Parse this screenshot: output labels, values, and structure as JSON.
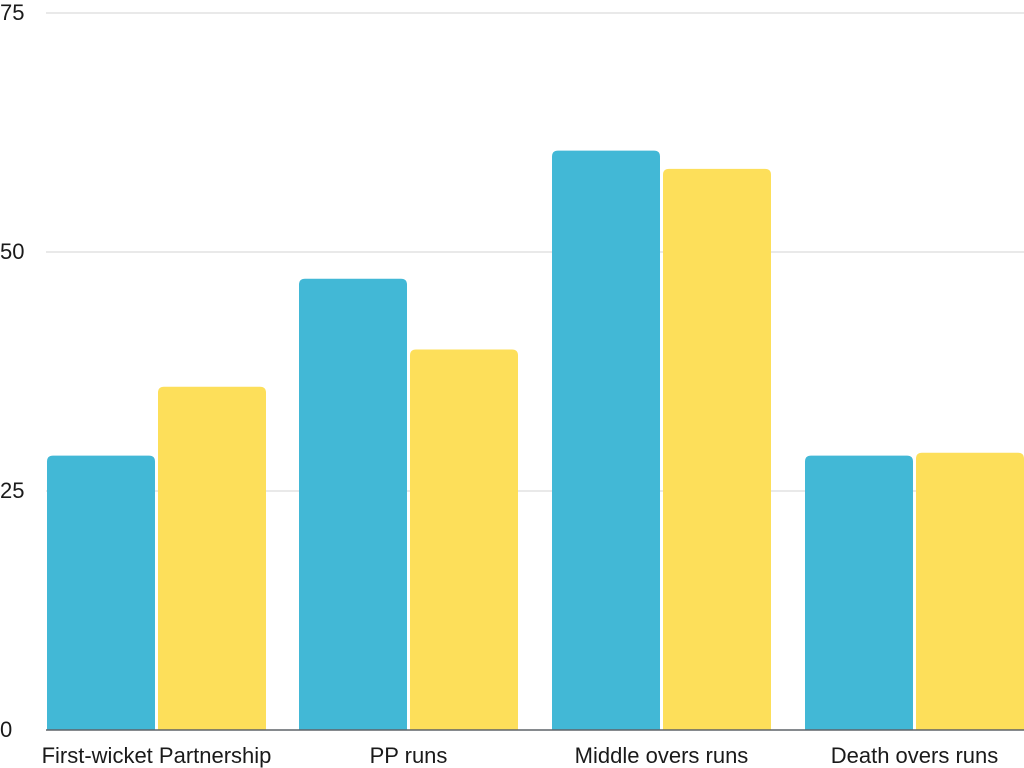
{
  "chart_data": {
    "type": "bar",
    "categories": [
      "First-wicket Partnership",
      "PP runs",
      "Middle overs runs",
      "Death overs runs"
    ],
    "series": [
      {
        "values": [
          28.7,
          47.2,
          60.6,
          28.7
        ],
        "color": "#42b8d6"
      },
      {
        "values": [
          35.9,
          39.8,
          58.7,
          29.0
        ],
        "color": "#fddf5a"
      }
    ],
    "title": "",
    "xlabel": "",
    "ylabel": "",
    "ylim": [
      0,
      75
    ],
    "yticks": [
      0,
      25,
      50,
      75
    ],
    "grid": true,
    "legend": "none"
  }
}
